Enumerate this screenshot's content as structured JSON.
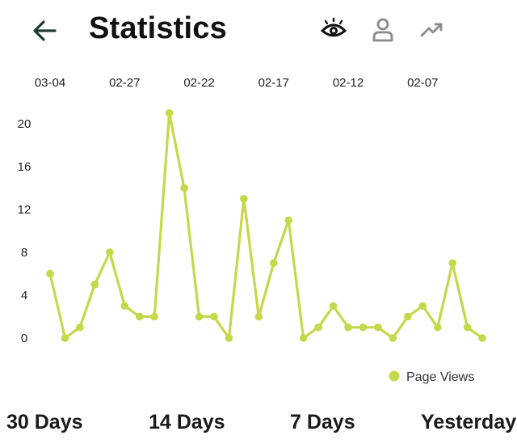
{
  "header": {
    "title": "Statistics",
    "icons": [
      "back-arrow-icon",
      "eye-icon",
      "person-icon",
      "trending-up-icon"
    ]
  },
  "colors": {
    "series": "#c5d84a",
    "back_arrow": "#1e3a34",
    "eye": "#111111",
    "person": "#8a8a8a",
    "trend": "#8a8a8a"
  },
  "chart_data": {
    "type": "line",
    "x_tick_labels": [
      "03-04",
      "02-27",
      "02-22",
      "02-17",
      "02-12",
      "02-07"
    ],
    "x_axis_position": "top",
    "y_ticks": [
      0,
      4,
      8,
      12,
      16,
      20
    ],
    "ylim": [
      0,
      20
    ],
    "grid": false,
    "legend_position": "bottom-right",
    "series": [
      {
        "name": "Page Views",
        "values": [
          6,
          0,
          1,
          5,
          8,
          3,
          2,
          2,
          21,
          14,
          2,
          2,
          0,
          13,
          2,
          7,
          11,
          0,
          1,
          3,
          1,
          1,
          1,
          0,
          2,
          3,
          1,
          7,
          1,
          0
        ]
      }
    ]
  },
  "ranges": [
    "30 Days",
    "14 Days",
    "7 Days",
    "Yesterday"
  ]
}
